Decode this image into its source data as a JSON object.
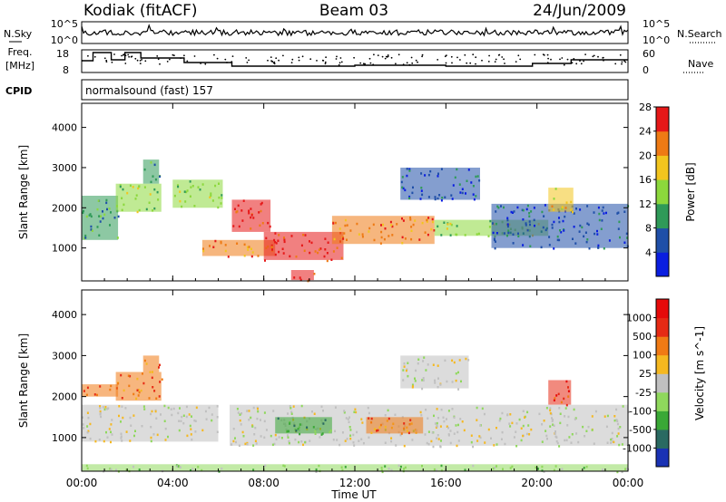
{
  "header": {
    "station": "Kodiak (fitACF)",
    "beam": "Beam 03",
    "date": "24/Jun/2009"
  },
  "panel_labels": {
    "nsky": "N.Sky",
    "nsearch": "N.Search",
    "freq_line1": "Freq.",
    "freq_line2": "[MHz]",
    "nave": "Nave",
    "cpid": "CPID",
    "program": "normalsound (fast) 157"
  },
  "small_axes": {
    "nsky_ticks": [
      "10^5",
      "10^0"
    ],
    "nsearch_ticks": [
      "10^5",
      "10^0"
    ],
    "freq_ticks": [
      "18",
      "8"
    ],
    "nave_ticks": [
      "60",
      "0"
    ]
  },
  "chart_data": [
    {
      "type": "heatmap",
      "name": "power",
      "ylabel": "Slant Range [km]",
      "yticks": [
        "1000",
        "2000",
        "3000",
        "4000"
      ],
      "ylim": [
        180,
        4600
      ],
      "xlim": [
        0,
        24
      ],
      "colorbar": {
        "label": "Power [dB]",
        "ticks": [
          "4",
          "8",
          "12",
          "16",
          "20",
          "24",
          "28"
        ],
        "colors": [
          "#0a1ee0",
          "#1f4fa8",
          "#2f9a58",
          "#8cd83c",
          "#f2c51e",
          "#ee7a14",
          "#e61818"
        ]
      },
      "regions": [
        {
          "t0": 0.0,
          "t1": 1.6,
          "r0": 1200,
          "r1": 2300,
          "level": 2
        },
        {
          "t0": 1.5,
          "t1": 3.5,
          "r0": 1900,
          "r1": 2600,
          "level": 3
        },
        {
          "t0": 2.7,
          "t1": 3.4,
          "r0": 2600,
          "r1": 3200,
          "level": 2
        },
        {
          "t0": 4.0,
          "t1": 6.2,
          "r0": 2000,
          "r1": 2700,
          "level": 3
        },
        {
          "t0": 5.3,
          "t1": 8.5,
          "r0": 800,
          "r1": 1200,
          "level": 5
        },
        {
          "t0": 6.6,
          "t1": 8.3,
          "r0": 1400,
          "r1": 2200,
          "level": 6
        },
        {
          "t0": 8.0,
          "t1": 11.5,
          "r0": 700,
          "r1": 1400,
          "level": 6
        },
        {
          "t0": 9.2,
          "t1": 10.2,
          "r0": 200,
          "r1": 450,
          "level": 6
        },
        {
          "t0": 11.0,
          "t1": 15.5,
          "r0": 1100,
          "r1": 1800,
          "level": 5
        },
        {
          "t0": 14.0,
          "t1": 17.5,
          "r0": 2200,
          "r1": 3000,
          "level": 1
        },
        {
          "t0": 15.5,
          "t1": 20.5,
          "r0": 1300,
          "r1": 1700,
          "level": 3
        },
        {
          "t0": 18.0,
          "t1": 24.0,
          "r0": 1000,
          "r1": 2100,
          "level": 1
        },
        {
          "t0": 20.5,
          "t1": 21.6,
          "r0": 1900,
          "r1": 2500,
          "level": 4
        }
      ]
    },
    {
      "type": "heatmap",
      "name": "velocity",
      "ylabel": "Slant Range [km]",
      "yticks": [
        "1000",
        "2000",
        "3000",
        "4000"
      ],
      "ylim": [
        180,
        4600
      ],
      "xlim": [
        0,
        24
      ],
      "xticks": [
        "00:00",
        "04:00",
        "08:00",
        "12:00",
        "16:00",
        "20:00",
        "00:00"
      ],
      "xlabel": "Time UT",
      "colorbar": {
        "label": "Velocity [m s^-1]",
        "ticks": [
          "1000",
          "500",
          "100",
          "25",
          "-25",
          "-100",
          "-500",
          "-1000"
        ],
        "colors": [
          "#1a32b4",
          "#2a6a62",
          "#3aa836",
          "#8fd85c",
          "#c0c0c0",
          "#f5b820",
          "#f07a14",
          "#e62a14",
          "#e60a0a"
        ]
      },
      "regions": [
        {
          "t0": 0.0,
          "t1": 1.6,
          "r0": 2000,
          "r1": 2300,
          "level": 6
        },
        {
          "t0": 1.5,
          "t1": 3.5,
          "r0": 1900,
          "r1": 2600,
          "level": 6
        },
        {
          "t0": 2.7,
          "t1": 3.4,
          "r0": 2600,
          "r1": 3000,
          "level": 6
        },
        {
          "t0": 0.0,
          "t1": 6.0,
          "r0": 900,
          "r1": 1800,
          "level": 4
        },
        {
          "t0": 6.5,
          "t1": 24.0,
          "r0": 800,
          "r1": 1800,
          "level": 4
        },
        {
          "t0": 8.5,
          "t1": 11.0,
          "r0": 1100,
          "r1": 1500,
          "level": 2
        },
        {
          "t0": 12.5,
          "t1": 15.0,
          "r0": 1100,
          "r1": 1500,
          "level": 6
        },
        {
          "t0": 14.0,
          "t1": 17.0,
          "r0": 2200,
          "r1": 3000,
          "level": 4
        },
        {
          "t0": 20.5,
          "t1": 21.5,
          "r0": 1800,
          "r1": 2400,
          "level": 7
        },
        {
          "t0": 0.0,
          "t1": 24.0,
          "r0": 180,
          "r1": 350,
          "level": 3
        }
      ]
    }
  ],
  "colors": {
    "line": "#000000",
    "background": "#ffffff"
  }
}
